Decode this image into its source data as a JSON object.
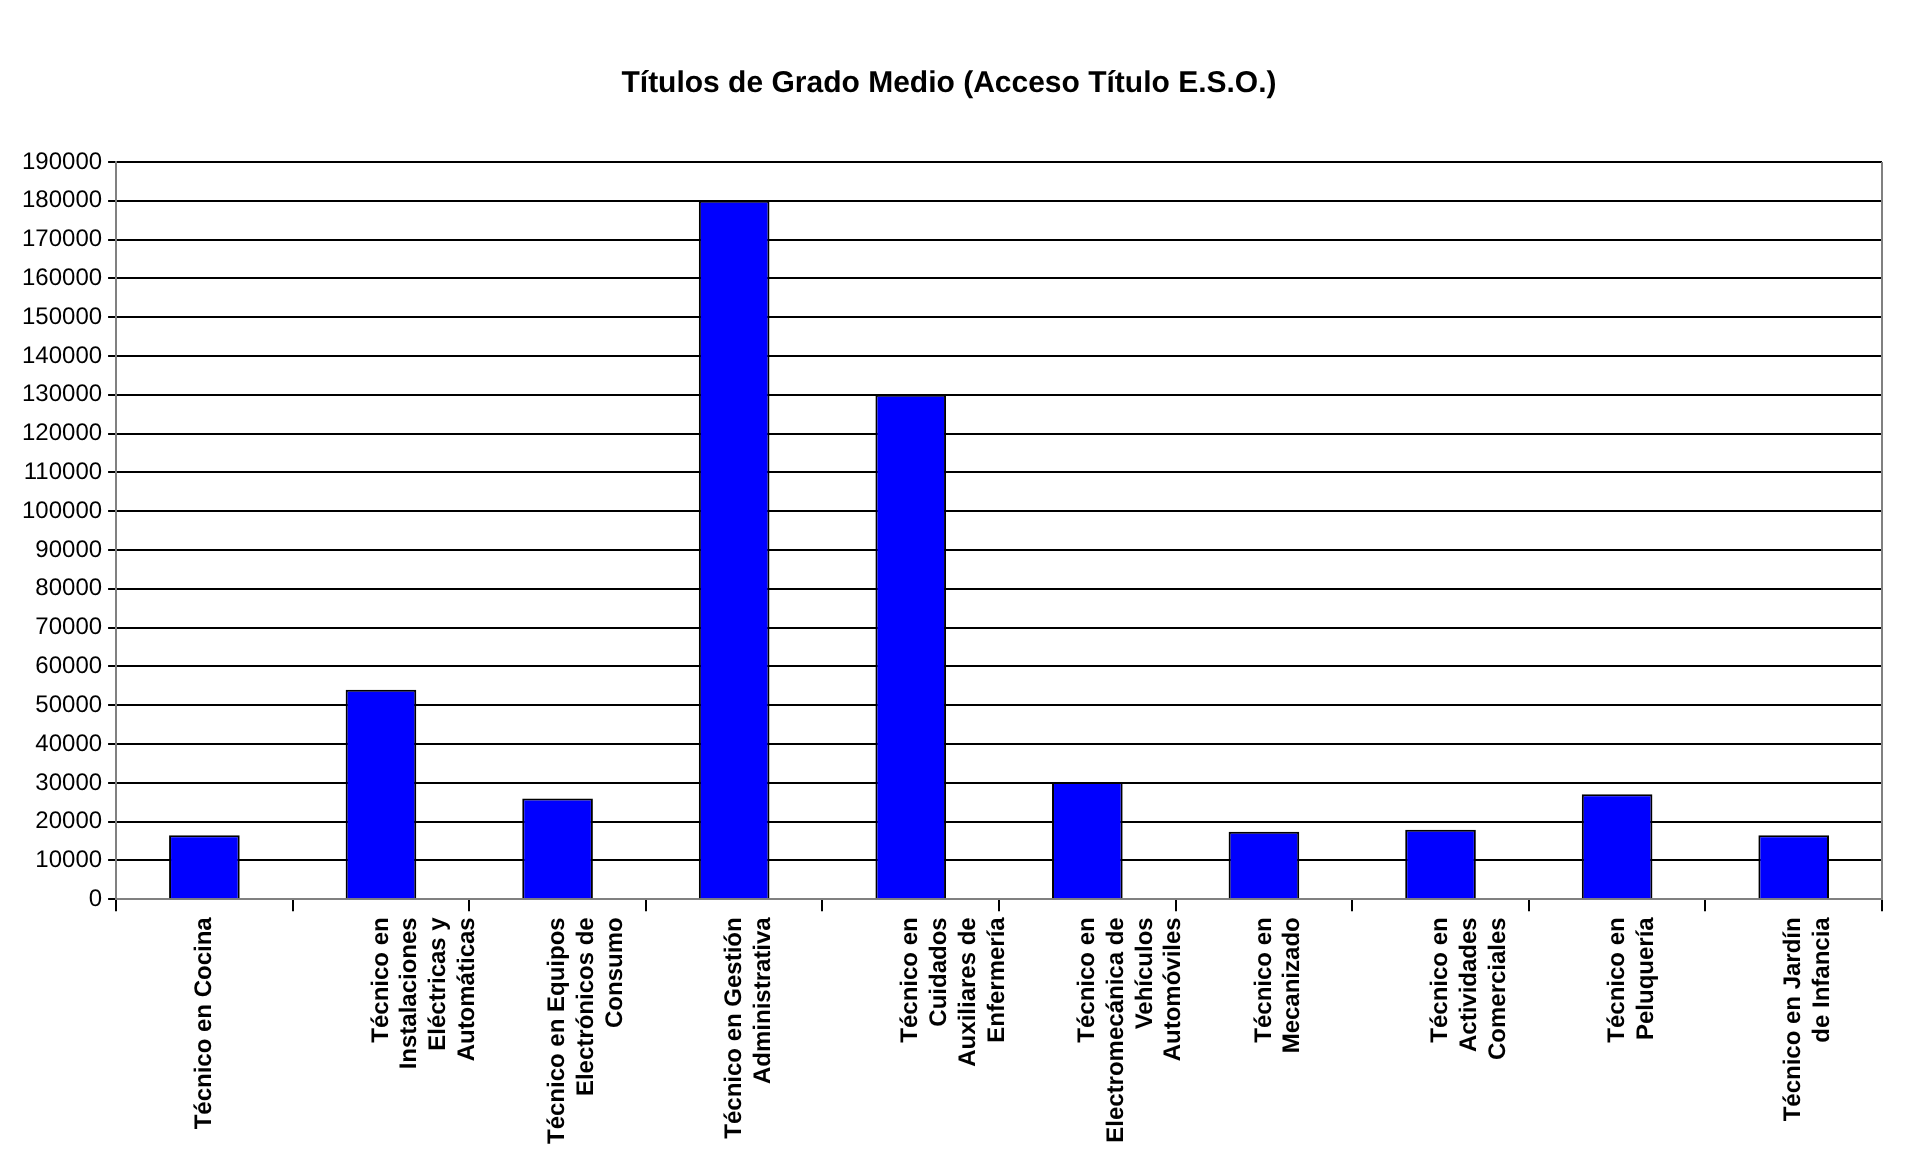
{
  "chart_data": {
    "type": "bar",
    "title": "Títulos de Grado Medio (Acceso Título E.S.O.)",
    "categories": [
      "Técnico en Cocina",
      "Técnico en Instalaciones Eléctricas y Automáticas",
      "Técnico en Equipos Electrónicos de Consumo",
      "Técnico en Gestión Administrativa",
      "Técnico en Cuidados Auxiliares de Enfermería",
      "Técnico en Electromecánica de Vehículos Automóviles",
      "Técnico en Mecanizado",
      "Técnico en Actividades Comerciales",
      "Técnico en Peluquería",
      "Técnico en Jardín de Infancia"
    ],
    "values": [
      16500,
      54000,
      26000,
      180000,
      130000,
      30200,
      17400,
      17900,
      27100,
      16500
    ],
    "color": "#0000ff",
    "ylim": [
      0,
      190000
    ],
    "yticks": [
      0,
      10000,
      20000,
      30000,
      40000,
      50000,
      60000,
      70000,
      80000,
      90000,
      100000,
      110000,
      120000,
      130000,
      140000,
      150000,
      160000,
      170000,
      180000,
      190000
    ],
    "grid": "y",
    "legend": false
  }
}
